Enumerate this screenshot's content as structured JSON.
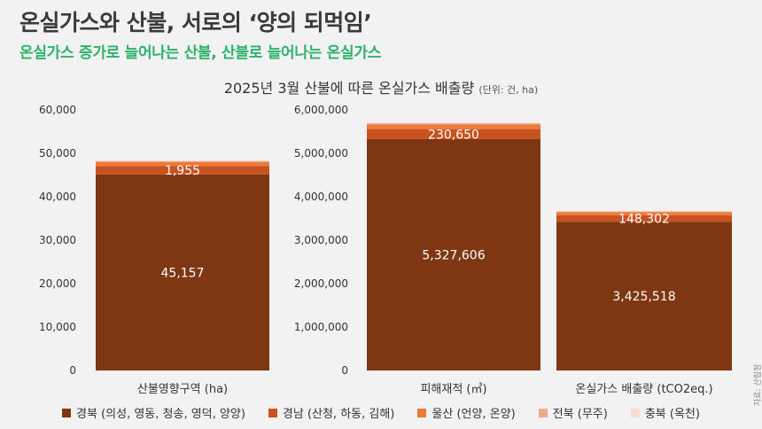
{
  "headline": "온실가스와 산불, 서로의 ‘양의 되먹임’",
  "subheadline": "온실가스 증가로 늘어나는 산불, 산불로 늘어나는 온실가스",
  "source": "자료: 산림청",
  "colors": {
    "gyeongbuk": "#7f3612",
    "gyeongnam": "#c9531f",
    "ulsan": "#ec7a3a",
    "jeonbuk": "#f2a88a",
    "chungbuk": "#f7dccf",
    "title_green": "#2db36a"
  },
  "chart_data": {
    "type": "bar",
    "stacked": true,
    "title": "2025년 3월 산불에 따른 온실가스 배출량",
    "title_unit": "(단위: 건, ha)",
    "legend_position": "bottom",
    "grid": false,
    "series_names": [
      "경북 (의성, 영동, 청송, 영덕, 양양)",
      "경남 (산청, 하동, 김해)",
      "울산 (언양, 온양)",
      "전북 (무주)",
      "충북 (옥천)"
    ],
    "left": {
      "ylim": [
        0,
        60000
      ],
      "ticks": [
        "0",
        "10,000",
        "20,000",
        "30,000",
        "40,000",
        "50,000",
        "60,000"
      ],
      "categories": [
        "산불영향구역 (ha)"
      ],
      "stacks": [
        [
          45157,
          1955,
          920,
          190,
          60
        ]
      ],
      "labels": [
        [
          "45,157",
          "1,955"
        ]
      ]
    },
    "right": {
      "ylim": [
        0,
        6000000
      ],
      "ticks": [
        "0",
        "1,000,000",
        "2,000,000",
        "3,000,000",
        "4,000,000",
        "5,000,000",
        "6,000,000"
      ],
      "categories": [
        "피해재적 (㎥)",
        "온실가스 배출량 (tCO2eq.)"
      ],
      "stacks": [
        [
          5327606,
          230650,
          110000,
          25000,
          10000
        ],
        [
          3425518,
          148302,
          72000,
          17000,
          6000
        ]
      ],
      "labels": [
        [
          "5,327,606",
          "230,650"
        ],
        [
          "3,425,518",
          "148,302"
        ]
      ]
    }
  }
}
